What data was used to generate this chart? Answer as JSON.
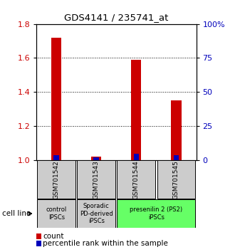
{
  "title": "GDS4141 / 235741_at",
  "samples": [
    "GSM701542",
    "GSM701543",
    "GSM701544",
    "GSM701545"
  ],
  "count_values": [
    1.72,
    1.02,
    1.59,
    1.35
  ],
  "percentile_values": [
    3.5,
    2.0,
    4.5,
    3.5
  ],
  "ylim_left": [
    1.0,
    1.8
  ],
  "ylim_right": [
    0,
    100
  ],
  "y_left_ticks": [
    1.0,
    1.2,
    1.4,
    1.6,
    1.8
  ],
  "y_right_ticks": [
    0,
    25,
    50,
    75,
    100
  ],
  "y_right_labels": [
    "0",
    "25",
    "50",
    "75",
    "100%"
  ],
  "count_color": "#cc0000",
  "percentile_color": "#0000bb",
  "cell_line_groups": [
    {
      "label": "control\nIPSCs",
      "cols": [
        0
      ],
      "color": "#cccccc"
    },
    {
      "label": "Sporadic\nPD-derived\niPSCs",
      "cols": [
        1
      ],
      "color": "#cccccc"
    },
    {
      "label": "presenilin 2 (PS2)\niPSCs",
      "cols": [
        2,
        3
      ],
      "color": "#66ff66"
    }
  ],
  "legend_count_label": "count",
  "legend_percentile_label": "percentile rank within the sample",
  "cell_line_label": "cell line",
  "sample_box_color": "#cccccc",
  "tick_color_left": "#cc0000",
  "tick_color_right": "#0000bb",
  "bar_width": 0.25
}
